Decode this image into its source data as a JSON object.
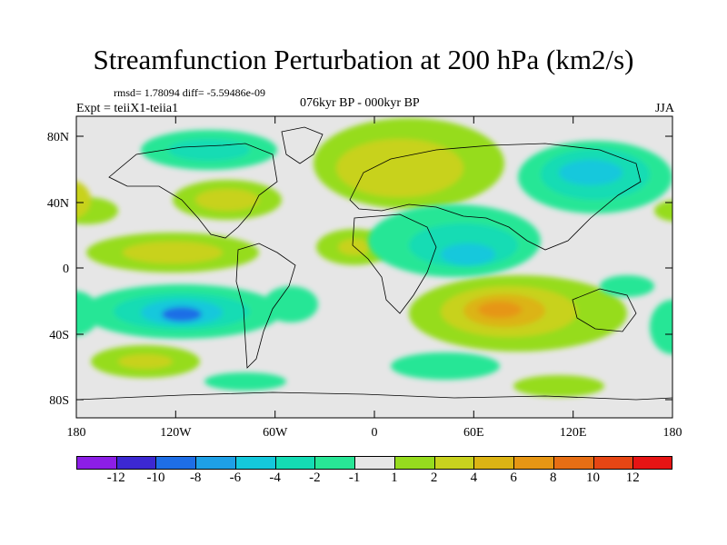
{
  "title": "Streamfunction Perturbation at 200 hPa (km2/s)",
  "stats": "rmsd= 1.78094  diff= -5.59486e-09",
  "experiment": "Expt = teiiX1-teiia1",
  "period": "076kyr BP - 000kyr BP",
  "season": "JJA",
  "axes": {
    "lon_ticks": [
      "180",
      "120W",
      "60W",
      "0",
      "60E",
      "120E",
      "180"
    ],
    "lat_ticks": [
      "80N",
      "40N",
      "0",
      "40S",
      "80S"
    ]
  },
  "colorbar": {
    "levels": [
      "-12",
      "-10",
      "-8",
      "-6",
      "-4",
      "-2",
      "-1",
      "1",
      "2",
      "4",
      "6",
      "8",
      "10",
      "12"
    ],
    "colors": [
      "#8c1ee6",
      "#3c28d2",
      "#1e6ee6",
      "#1ea0e6",
      "#14c8dc",
      "#14dcb4",
      "#28e696",
      "#e6e6e6",
      "#96dc1e",
      "#c8d21e",
      "#dcb414",
      "#e69614",
      "#e66e14",
      "#e64614",
      "#e61414"
    ]
  }
}
